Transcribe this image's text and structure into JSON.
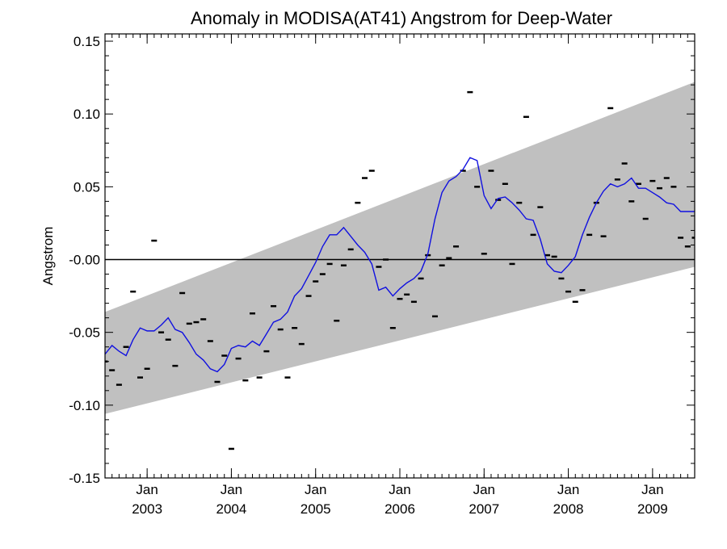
{
  "chart_data": {
    "type": "line",
    "title": "Anomaly in MODISA(AT41) Angstrom for Deep-Water",
    "xlabel": "",
    "ylabel": "Angstrom",
    "xlim": [
      2002.5,
      2009.5
    ],
    "ylim": [
      -0.15,
      0.155
    ],
    "grid": false,
    "legend": "none",
    "x_ticks": [
      {
        "x": 2003.0,
        "month": "Jan",
        "year": "2003"
      },
      {
        "x": 2004.0,
        "month": "Jan",
        "year": "2004"
      },
      {
        "x": 2005.0,
        "month": "Jan",
        "year": "2005"
      },
      {
        "x": 2006.0,
        "month": "Jan",
        "year": "2006"
      },
      {
        "x": 2007.0,
        "month": "Jan",
        "year": "2007"
      },
      {
        "x": 2008.0,
        "month": "Jan",
        "year": "2008"
      },
      {
        "x": 2009.0,
        "month": "Jan",
        "year": "2009"
      }
    ],
    "y_ticks": [
      {
        "value": 0.15,
        "label": "0.15"
      },
      {
        "value": 0.1,
        "label": "0.10"
      },
      {
        "value": 0.05,
        "label": "0.05"
      },
      {
        "value": 0.0,
        "label": "-0.00"
      },
      {
        "value": -0.05,
        "label": "-0.05"
      },
      {
        "value": -0.1,
        "label": "-0.10"
      },
      {
        "value": -0.15,
        "label": "-0.15"
      }
    ],
    "zero_line": 0.0,
    "band": {
      "x": [
        2002.5,
        2009.5
      ],
      "upper": [
        -0.036,
        0.122
      ],
      "lower": [
        -0.106,
        -0.005
      ],
      "color": "#c0c0c0"
    },
    "monthly_points": {
      "color": "#000000",
      "x": [
        2002.5,
        2002.583,
        2002.667,
        2002.75,
        2002.833,
        2002.917,
        2003.0,
        2003.083,
        2003.167,
        2003.25,
        2003.333,
        2003.417,
        2003.5,
        2003.583,
        2003.667,
        2003.75,
        2003.833,
        2003.917,
        2004.0,
        2004.083,
        2004.167,
        2004.25,
        2004.333,
        2004.417,
        2004.5,
        2004.583,
        2004.667,
        2004.75,
        2004.833,
        2004.917,
        2005.0,
        2005.083,
        2005.167,
        2005.25,
        2005.333,
        2005.417,
        2005.5,
        2005.583,
        2005.667,
        2005.75,
        2005.833,
        2005.917,
        2006.0,
        2006.083,
        2006.167,
        2006.25,
        2006.333,
        2006.417,
        2006.5,
        2006.583,
        2006.667,
        2006.75,
        2006.833,
        2006.917,
        2007.0,
        2007.083,
        2007.167,
        2007.25,
        2007.333,
        2007.417,
        2007.5,
        2007.583,
        2007.667,
        2007.75,
        2007.833,
        2007.917,
        2008.0,
        2008.083,
        2008.167,
        2008.25,
        2008.333,
        2008.417,
        2008.5,
        2008.583,
        2008.667,
        2008.75,
        2008.833,
        2008.917,
        2009.0,
        2009.083,
        2009.167,
        2009.25,
        2009.333,
        2009.417,
        2009.5
      ],
      "y": [
        -0.07,
        -0.076,
        -0.086,
        -0.06,
        -0.022,
        -0.081,
        -0.075,
        0.013,
        -0.05,
        -0.055,
        -0.073,
        -0.023,
        -0.044,
        -0.043,
        -0.041,
        -0.056,
        -0.084,
        -0.066,
        -0.13,
        -0.068,
        -0.083,
        -0.037,
        -0.081,
        -0.063,
        -0.032,
        -0.048,
        -0.081,
        -0.047,
        -0.058,
        -0.025,
        -0.015,
        -0.01,
        -0.003,
        -0.042,
        -0.004,
        0.007,
        0.039,
        0.056,
        0.061,
        -0.005,
        0.0,
        -0.047,
        -0.027,
        -0.024,
        -0.029,
        -0.013,
        0.003,
        -0.039,
        -0.004,
        0.001,
        0.009,
        0.061,
        0.115,
        0.05,
        0.004,
        0.061,
        0.041,
        0.052,
        -0.003,
        0.039,
        0.098,
        0.017,
        0.036,
        0.003,
        0.002,
        -0.013,
        -0.022,
        -0.029,
        -0.021,
        0.017,
        0.039,
        0.016,
        0.104,
        0.055,
        0.066,
        0.04,
        0.052,
        0.028,
        0.054,
        0.049,
        0.056,
        0.05,
        0.015,
        0.009,
        0.015
      ]
    },
    "smoothed_series": {
      "color": "#1010e0",
      "x": [
        2002.5,
        2002.583,
        2002.667,
        2002.75,
        2002.833,
        2002.917,
        2003.0,
        2003.083,
        2003.167,
        2003.25,
        2003.333,
        2003.417,
        2003.5,
        2003.583,
        2003.667,
        2003.75,
        2003.833,
        2003.917,
        2004.0,
        2004.083,
        2004.167,
        2004.25,
        2004.333,
        2004.417,
        2004.5,
        2004.583,
        2004.667,
        2004.75,
        2004.833,
        2004.917,
        2005.0,
        2005.083,
        2005.167,
        2005.25,
        2005.333,
        2005.417,
        2005.5,
        2005.583,
        2005.667,
        2005.75,
        2005.833,
        2005.917,
        2006.0,
        2006.083,
        2006.167,
        2006.25,
        2006.333,
        2006.417,
        2006.5,
        2006.583,
        2006.667,
        2006.75,
        2006.833,
        2006.917,
        2007.0,
        2007.083,
        2007.167,
        2007.25,
        2007.333,
        2007.417,
        2007.5,
        2007.583,
        2007.667,
        2007.75,
        2007.833,
        2007.917,
        2008.0,
        2008.083,
        2008.167,
        2008.25,
        2008.333,
        2008.417,
        2008.5,
        2008.583,
        2008.667,
        2008.75,
        2008.833,
        2008.917,
        2009.0,
        2009.083,
        2009.167,
        2009.25,
        2009.333,
        2009.417,
        2009.5
      ],
      "y": [
        -0.065,
        -0.059,
        -0.063,
        -0.066,
        -0.055,
        -0.047,
        -0.049,
        -0.049,
        -0.045,
        -0.04,
        -0.048,
        -0.05,
        -0.057,
        -0.065,
        -0.069,
        -0.075,
        -0.077,
        -0.072,
        -0.061,
        -0.059,
        -0.06,
        -0.056,
        -0.059,
        -0.051,
        -0.043,
        -0.041,
        -0.036,
        -0.025,
        -0.02,
        -0.011,
        -0.002,
        0.009,
        0.017,
        0.017,
        0.022,
        0.016,
        0.01,
        0.005,
        -0.003,
        -0.021,
        -0.019,
        -0.025,
        -0.02,
        -0.016,
        -0.013,
        -0.008,
        0.004,
        0.028,
        0.046,
        0.054,
        0.057,
        0.062,
        0.07,
        0.068,
        0.044,
        0.035,
        0.042,
        0.043,
        0.039,
        0.034,
        0.028,
        0.027,
        0.014,
        -0.003,
        -0.008,
        -0.009,
        -0.004,
        0.002,
        0.017,
        0.029,
        0.039,
        0.047,
        0.052,
        0.05,
        0.052,
        0.056,
        0.049,
        0.049,
        0.046,
        0.043,
        0.039,
        0.038,
        0.033,
        0.033,
        0.033
      ]
    }
  }
}
